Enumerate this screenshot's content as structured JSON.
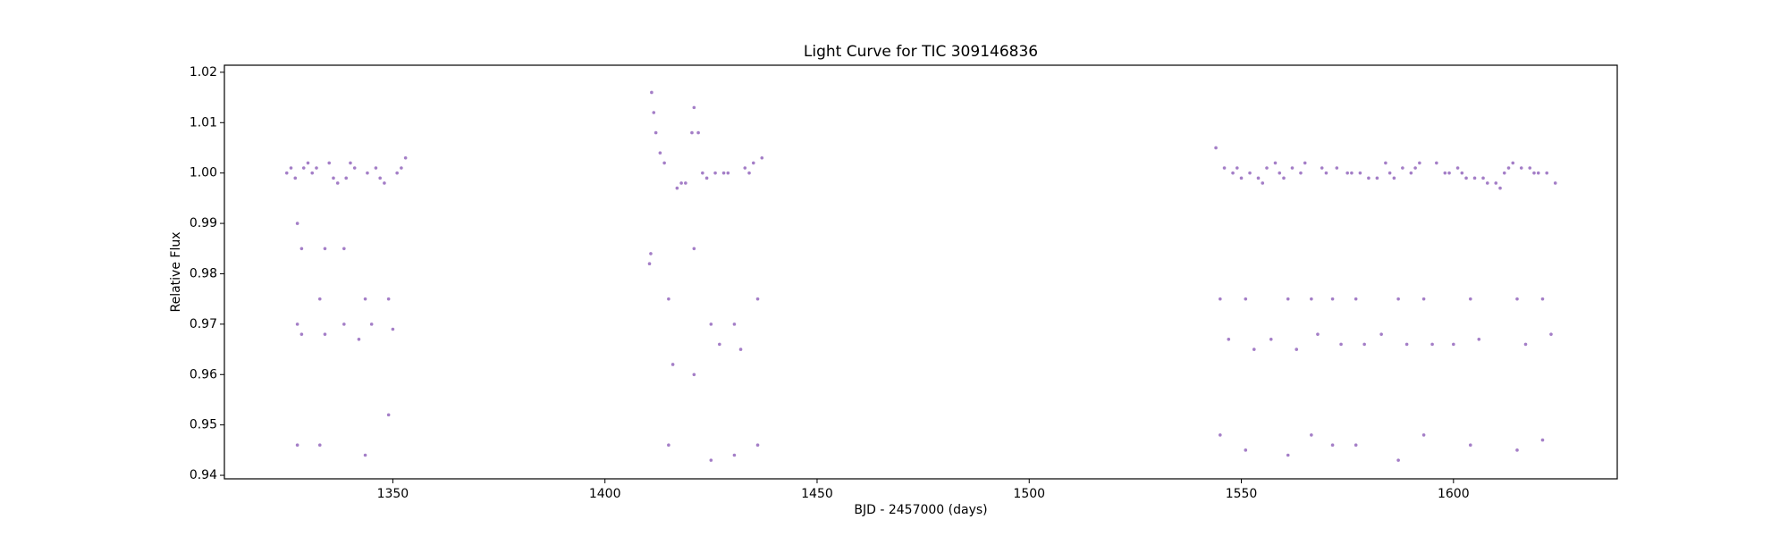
{
  "chart_data": {
    "type": "scatter",
    "title": "Light Curve for TIC 309146836",
    "x_label": "BJD - 2457000 (days)",
    "y_label": "Relative Flux",
    "color": "#9467bd",
    "xlim": [
      1310.3,
      1638.6
    ],
    "ylim": [
      0.9393,
      1.0214
    ],
    "xticks": [
      1350,
      1400,
      1450,
      1500,
      1550,
      1600
    ],
    "yticks": [
      0.94,
      0.95,
      0.96,
      0.97,
      0.98,
      0.99,
      {
        "value": 1,
        "label": "1.00"
      },
      1.01,
      1.02
    ],
    "x": [
      1325,
      1326,
      1327,
      1327.5,
      1327.5,
      1327.5,
      1328.5,
      1328.5,
      1329,
      1330,
      1331,
      1332,
      1332.8,
      1332.8,
      1334,
      1334,
      1335,
      1336,
      1337,
      1338.5,
      1338.5,
      1339,
      1340,
      1341,
      1342,
      1343.5,
      1343.5,
      1344,
      1345,
      1346,
      1347,
      1348,
      1349,
      1349,
      1350,
      1351,
      1352,
      1353,
      1410.5,
      1410.8,
      1411,
      1411.5,
      1412,
      1413,
      1414,
      1415,
      1415,
      1416,
      1417,
      1418,
      1419,
      1420.5,
      1421,
      1421,
      1421,
      1422,
      1423,
      1424,
      1425,
      1425,
      1426,
      1427,
      1428,
      1429,
      1430.5,
      1430.5,
      1432,
      1433,
      1434,
      1435,
      1436,
      1436,
      1437,
      1544,
      1545,
      1545,
      1546,
      1547,
      1548,
      1549,
      1550,
      1551,
      1551,
      1552,
      1553,
      1554,
      1555,
      1556,
      1557,
      1558,
      1559,
      1560,
      1561,
      1561,
      1562,
      1563,
      1564,
      1565,
      1566.5,
      1566.5,
      1568,
      1569,
      1570,
      1571.5,
      1571.5,
      1572.5,
      1573.5,
      1575,
      1576,
      1577,
      1577,
      1578,
      1579,
      1580,
      1582,
      1583,
      1584,
      1585,
      1586,
      1587,
      1587,
      1588,
      1589,
      1590,
      1591,
      1592,
      1593,
      1593,
      1595,
      1596,
      1598,
      1599,
      1600,
      1601,
      1602,
      1603,
      1604,
      1604,
      1605,
      1606,
      1607,
      1608,
      1610,
      1611,
      1612,
      1613,
      1614,
      1615,
      1615,
      1616,
      1617,
      1618,
      1619,
      1620,
      1621,
      1621,
      1622,
      1623,
      1624
    ],
    "y": [
      1.0,
      1.001,
      0.999,
      0.99,
      0.97,
      0.946,
      0.985,
      0.968,
      1.001,
      1.002,
      1.0,
      1.001,
      0.975,
      0.946,
      0.985,
      0.968,
      1.002,
      0.999,
      0.998,
      0.985,
      0.97,
      0.999,
      1.002,
      1.001,
      0.967,
      0.975,
      0.944,
      1.0,
      0.97,
      1.001,
      0.999,
      0.998,
      0.975,
      0.952,
      0.969,
      1.0,
      1.001,
      1.003,
      0.982,
      0.984,
      1.016,
      1.012,
      1.008,
      1.004,
      1.002,
      0.975,
      0.946,
      0.962,
      0.997,
      0.998,
      0.998,
      1.008,
      1.013,
      0.985,
      0.96,
      1.008,
      1.0,
      0.999,
      0.97,
      0.943,
      1.0,
      0.966,
      1.0,
      1.0,
      0.97,
      0.944,
      0.965,
      1.001,
      1.0,
      1.002,
      0.975,
      0.946,
      1.003,
      1.005,
      0.975,
      0.948,
      1.001,
      0.967,
      1.0,
      1.001,
      0.999,
      0.975,
      0.945,
      1.0,
      0.965,
      0.999,
      0.998,
      1.001,
      0.967,
      1.002,
      1.0,
      0.999,
      0.975,
      0.944,
      1.001,
      0.965,
      1.0,
      1.002,
      0.975,
      0.948,
      0.968,
      1.001,
      1.0,
      0.975,
      0.946,
      1.001,
      0.966,
      1.0,
      1.0,
      0.975,
      0.946,
      1.0,
      0.966,
      0.999,
      0.999,
      0.968,
      1.002,
      1.0,
      0.999,
      0.975,
      0.943,
      1.001,
      0.966,
      1.0,
      1.001,
      1.002,
      0.975,
      0.948,
      0.966,
      1.002,
      1.0,
      1.0,
      0.966,
      1.001,
      1.0,
      0.999,
      0.975,
      0.946,
      0.999,
      0.967,
      0.999,
      0.998,
      0.998,
      0.997,
      1.0,
      1.001,
      1.002,
      0.975,
      0.945,
      1.001,
      0.966,
      1.001,
      1.0,
      1.0,
      0.975,
      0.947,
      1.0,
      0.968,
      0.998
    ]
  }
}
